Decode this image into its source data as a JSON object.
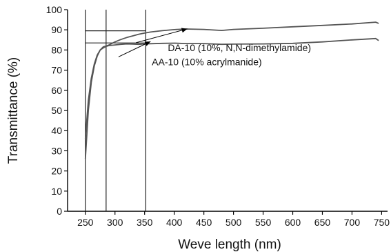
{
  "chart_data": {
    "type": "line",
    "title": "",
    "xlabel": "Weve length (nm)",
    "ylabel": "Transmittance (%)",
    "xlim": [
      220,
      760
    ],
    "ylim": [
      0,
      100
    ],
    "x_ticks": [
      250,
      300,
      350,
      400,
      450,
      500,
      550,
      600,
      650,
      700,
      750
    ],
    "y_ticks": [
      0,
      10,
      20,
      30,
      40,
      50,
      60,
      70,
      80,
      90,
      100
    ],
    "grid": false,
    "legend": "none",
    "line_color": "#555555",
    "series": [
      {
        "name": "DA-10 (10%, N,N-dimethylamide)",
        "x": [
          250,
          255,
          260,
          265,
          270,
          275,
          280,
          285,
          290,
          300,
          310,
          320,
          330,
          340,
          350,
          360,
          380,
          400,
          420,
          450,
          480,
          500,
          550,
          600,
          650,
          700,
          740,
          745
        ],
        "y": [
          36,
          55,
          66,
          73,
          77.5,
          80,
          81.5,
          82,
          82.5,
          84,
          85.2,
          86.2,
          87,
          87.8,
          88.4,
          88.9,
          89.6,
          90.1,
          90.4,
          90.2,
          89.7,
          90.2,
          90.8,
          91.5,
          92.2,
          92.9,
          93.8,
          93.2
        ]
      },
      {
        "name": "AA-10 (10% acrylmanide)",
        "x": [
          250,
          255,
          260,
          265,
          270,
          275,
          280,
          285,
          290,
          300,
          310,
          320,
          330,
          340,
          350,
          360,
          380,
          400,
          420,
          450,
          480,
          500,
          550,
          600,
          650,
          700,
          740,
          745
        ],
        "y": [
          26,
          50,
          64,
          72,
          77,
          80,
          81,
          81.8,
          82.2,
          82.5,
          82.8,
          83,
          82.9,
          82.8,
          83,
          83.1,
          83.3,
          83.4,
          83.2,
          83.2,
          82.8,
          82.9,
          83,
          83.3,
          84,
          85,
          85.7,
          84.7
        ]
      }
    ],
    "vertical_markers_x": [
      250,
      285,
      352
    ],
    "horizontal_markers": [
      {
        "y": 89.5,
        "x_from": 250,
        "x_to": 352
      },
      {
        "y": 83.5,
        "x_from": 250,
        "x_to": 352
      }
    ],
    "annotations": [
      {
        "text": "DA-10 (10%, N,N-dimethylamide)",
        "text_x": 510,
        "text_y": 79.5,
        "point_x": 422,
        "point_y": 90.5
      },
      {
        "text": "AA-10 (10% acrylmanide)",
        "text_x": 455,
        "text_y": 72.5,
        "point_x": 360,
        "point_y": 84.2
      }
    ]
  }
}
